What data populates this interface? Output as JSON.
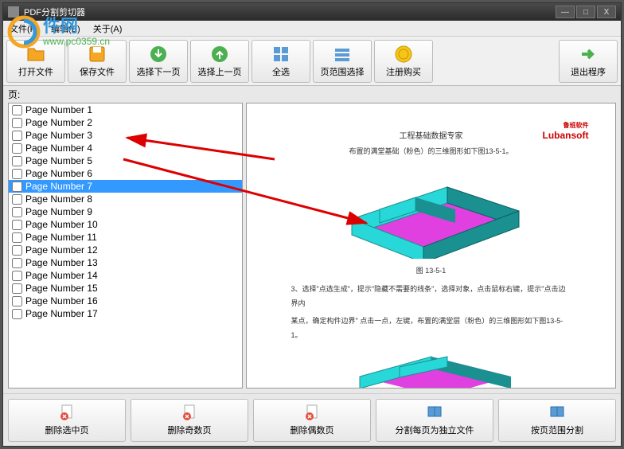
{
  "window": {
    "title": "PDF分割剪切器",
    "minimize": "—",
    "maximize": "□",
    "close": "X"
  },
  "menubar": {
    "file": "文件(F)",
    "edit": "编辑(E)",
    "about": "关于(A)"
  },
  "toolbar": {
    "open": "打开文件",
    "save": "保存文件",
    "next": "选择下一页",
    "prev": "选择上一页",
    "all": "全选",
    "range": "页范围选择",
    "register": "注册购买",
    "exit": "退出程序"
  },
  "pages_label": "页:",
  "pages": [
    {
      "label": "Page Number 1",
      "checked": false,
      "selected": false
    },
    {
      "label": "Page Number 2",
      "checked": false,
      "selected": false
    },
    {
      "label": "Page Number 3",
      "checked": false,
      "selected": false
    },
    {
      "label": "Page Number 4",
      "checked": false,
      "selected": false
    },
    {
      "label": "Page Number 5",
      "checked": false,
      "selected": false
    },
    {
      "label": "Page Number 6",
      "checked": false,
      "selected": false
    },
    {
      "label": "Page Number 7",
      "checked": false,
      "selected": true
    },
    {
      "label": "Page Number 8",
      "checked": false,
      "selected": false
    },
    {
      "label": "Page Number 9",
      "checked": false,
      "selected": false
    },
    {
      "label": "Page Number 10",
      "checked": false,
      "selected": false
    },
    {
      "label": "Page Number 11",
      "checked": false,
      "selected": false
    },
    {
      "label": "Page Number 12",
      "checked": false,
      "selected": false
    },
    {
      "label": "Page Number 13",
      "checked": false,
      "selected": false
    },
    {
      "label": "Page Number 14",
      "checked": false,
      "selected": false
    },
    {
      "label": "Page Number 15",
      "checked": false,
      "selected": false
    },
    {
      "label": "Page Number 16",
      "checked": false,
      "selected": false
    },
    {
      "label": "Page Number 17",
      "checked": false,
      "selected": false
    }
  ],
  "preview": {
    "brand_cn": "鲁班软件",
    "brand_en": "Lubansoft",
    "heading": "工程基础数据专家",
    "line1": "布置的满堂基础（粉色）的三维图形如下图13-5-1。",
    "fig_label": "图 13-5-1",
    "para1": "3、选择\"点选生成\"，提示\"隐藏不需要的线条\"，选择对象，点击鼠标右键，提示\"点击边界内",
    "para2": "某点，确定构件边界\" 点击一点，左键，布置的满堂层（粉色）的三维图形如下图13-5-1。",
    "colors": {
      "model_cyan": "#28d8d8",
      "model_dark": "#1a9090",
      "model_magenta": "#e040e0",
      "brand_red": "#cc0000",
      "selected_bg": "#3399ff"
    }
  },
  "bottombar": {
    "del_selected": "删除选中页",
    "del_odd": "删除奇数页",
    "del_even": "删除偶数页",
    "split_each": "分割每页为独立文件",
    "split_range": "按页范围分割"
  },
  "watermark": {
    "site_cn": "件网",
    "url": "www.pc0359.cn"
  },
  "icons": {
    "open_color": "#f5a623",
    "save_color": "#f5a623",
    "arrow_green": "#4caf50",
    "select_blue": "#3498db",
    "coin_gold": "#f5c518",
    "doc_blue": "#5b9bd5",
    "delete_red": "#e74c3c"
  }
}
